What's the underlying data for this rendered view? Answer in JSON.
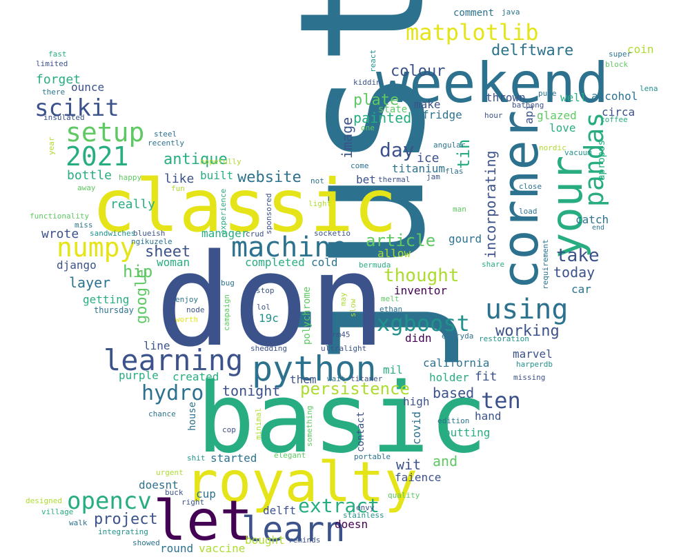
{
  "palette": {
    "purple": "#440154",
    "indigo": "#3b528b",
    "teal": "#2c728e",
    "cyan": "#21918c",
    "green": "#27ad81",
    "lime": "#5ec962",
    "yellowgreen": "#addc30",
    "yellow": "#e4e419"
  },
  "words": [
    {
      "text": "just",
      "color": "teal"
    },
    {
      "text": "don",
      "color": "indigo"
    },
    {
      "text": "basic",
      "color": "green"
    },
    {
      "text": "classic",
      "color": "yellow"
    },
    {
      "text": "weekend",
      "color": "teal"
    },
    {
      "text": "royalty",
      "color": "yellow"
    },
    {
      "text": "let",
      "color": "purple"
    },
    {
      "text": "corner",
      "color": "teal"
    },
    {
      "text": "your",
      "color": "green"
    },
    {
      "text": "learn",
      "color": "indigo"
    },
    {
      "text": "python",
      "color": "teal"
    },
    {
      "text": "learning",
      "color": "indigo"
    },
    {
      "text": "machine",
      "color": "teal"
    },
    {
      "text": "numpy",
      "color": "yellow"
    },
    {
      "text": "setup",
      "color": "lime"
    },
    {
      "text": "2021",
      "color": "green"
    },
    {
      "text": "scikit",
      "color": "indigo"
    },
    {
      "text": "matplotlib",
      "color": "yellow"
    },
    {
      "text": "pandas",
      "color": "green"
    },
    {
      "text": "using",
      "color": "teal"
    },
    {
      "text": "xgboost",
      "color": "cyan"
    },
    {
      "text": "opencv",
      "color": "green"
    },
    {
      "text": "ten",
      "color": "indigo"
    },
    {
      "text": "hydro",
      "color": "teal"
    },
    {
      "text": "extract",
      "color": "green"
    },
    {
      "text": "day",
      "color": "indigo"
    },
    {
      "text": "persistence",
      "color": "yellowgreen"
    },
    {
      "text": "article",
      "color": "lime"
    },
    {
      "text": "thought",
      "color": "yellowgreen"
    },
    {
      "text": "take",
      "color": "indigo"
    },
    {
      "text": "working",
      "color": "indigo"
    },
    {
      "text": "colour",
      "color": "indigo"
    },
    {
      "text": "delftware",
      "color": "teal"
    },
    {
      "text": "plate",
      "color": "lime"
    },
    {
      "text": "website",
      "color": "teal"
    },
    {
      "text": "antique",
      "color": "green"
    },
    {
      "text": "sheet",
      "color": "indigo"
    },
    {
      "text": "project",
      "color": "indigo"
    },
    {
      "text": "hip",
      "color": "lime"
    },
    {
      "text": "tin",
      "color": "green"
    },
    {
      "text": "incorporating",
      "color": "indigo"
    },
    {
      "text": "image",
      "color": "indigo"
    },
    {
      "text": "google",
      "color": "lime"
    },
    {
      "text": "layer",
      "color": "teal"
    },
    {
      "text": "painted",
      "color": "green"
    },
    {
      "text": "based",
      "color": "indigo"
    },
    {
      "text": "tonight",
      "color": "indigo"
    },
    {
      "text": "today",
      "color": "indigo"
    },
    {
      "text": "and",
      "color": "lime"
    },
    {
      "text": "wit",
      "color": "indigo"
    },
    {
      "text": "forget",
      "color": "green"
    },
    {
      "text": "ounce",
      "color": "indigo"
    },
    {
      "text": "bottle",
      "color": "green"
    },
    {
      "text": "like",
      "color": "indigo"
    },
    {
      "text": "really",
      "color": "green"
    },
    {
      "text": "wrote",
      "color": "indigo"
    },
    {
      "text": "manager",
      "color": "green"
    },
    {
      "text": "django",
      "color": "indigo"
    },
    {
      "text": "built",
      "color": "green"
    },
    {
      "text": "woman",
      "color": "green"
    },
    {
      "text": "completed",
      "color": "green"
    },
    {
      "text": "cold",
      "color": "teal"
    },
    {
      "text": "allow",
      "color": "yellowgreen"
    },
    {
      "text": "inventor",
      "color": "purple"
    },
    {
      "text": "getting",
      "color": "green"
    },
    {
      "text": "thursday",
      "color": "teal"
    },
    {
      "text": "line",
      "color": "indigo"
    },
    {
      "text": "purple",
      "color": "green"
    },
    {
      "text": "created",
      "color": "green"
    },
    {
      "text": "them",
      "color": "indigo"
    },
    {
      "text": "mil",
      "color": "green"
    },
    {
      "text": "california",
      "color": "teal"
    },
    {
      "text": "fit",
      "color": "indigo"
    },
    {
      "text": "holder",
      "color": "green"
    },
    {
      "text": "marvel",
      "color": "indigo"
    },
    {
      "text": "didn",
      "color": "purple"
    },
    {
      "text": "19c",
      "color": "cyan"
    },
    {
      "text": "polychrome",
      "color": "lime"
    },
    {
      "text": "high",
      "color": "indigo"
    },
    {
      "text": "contact",
      "color": "indigo"
    },
    {
      "text": "covid",
      "color": "teal"
    },
    {
      "text": "hand",
      "color": "indigo"
    },
    {
      "text": "putting",
      "color": "green"
    },
    {
      "text": "house",
      "color": "teal"
    },
    {
      "text": "started",
      "color": "teal"
    },
    {
      "text": "doesnt",
      "color": "teal"
    },
    {
      "text": "faience",
      "color": "indigo"
    },
    {
      "text": "cup",
      "color": "teal"
    },
    {
      "text": "delft",
      "color": "indigo"
    },
    {
      "text": "doesn",
      "color": "purple"
    },
    {
      "text": "bought",
      "color": "yellowgreen"
    },
    {
      "text": "round",
      "color": "teal"
    },
    {
      "text": "vaccine",
      "color": "yellowgreen"
    },
    {
      "text": "make",
      "color": "indigo"
    },
    {
      "text": "fridge",
      "color": "teal"
    },
    {
      "text": "ice",
      "color": "indigo"
    },
    {
      "text": "titanium",
      "color": "teal"
    },
    {
      "text": "bet",
      "color": "indigo"
    },
    {
      "text": "thrown",
      "color": "indigo"
    },
    {
      "text": "well",
      "color": "green"
    },
    {
      "text": "alcohol",
      "color": "teal"
    },
    {
      "text": "glazed",
      "color": "lime"
    },
    {
      "text": "circa",
      "color": "indigo"
    },
    {
      "text": "love",
      "color": "green"
    },
    {
      "text": "apropos",
      "color": "green"
    },
    {
      "text": "catch",
      "color": "teal"
    },
    {
      "text": "car",
      "color": "teal"
    },
    {
      "text": "gourd",
      "color": "teal"
    },
    {
      "text": "state",
      "color": "lime"
    },
    {
      "text": "api",
      "color": "indigo"
    },
    {
      "text": "comment",
      "color": "teal"
    },
    {
      "text": "java",
      "color": "teal"
    },
    {
      "text": "coin",
      "color": "yellowgreen"
    },
    {
      "text": "super",
      "color": "teal"
    },
    {
      "text": "block",
      "color": "lime"
    },
    {
      "text": "lena",
      "color": "cyan"
    },
    {
      "text": "pure",
      "color": "teal"
    },
    {
      "text": "bathong",
      "color": "indigo"
    },
    {
      "text": "hour",
      "color": "indigo"
    },
    {
      "text": "coffee",
      "color": "green"
    },
    {
      "text": "nordic",
      "color": "yellowgreen"
    },
    {
      "text": "vacuum",
      "color": "cyan"
    },
    {
      "text": "end",
      "color": "teal"
    },
    {
      "text": "kiddin",
      "color": "indigo"
    },
    {
      "text": "react",
      "color": "cyan"
    },
    {
      "text": "one",
      "color": "lime"
    },
    {
      "text": "angular",
      "color": "teal"
    },
    {
      "text": "flas",
      "color": "teal"
    },
    {
      "text": "jam",
      "color": "indigo"
    },
    {
      "text": "come",
      "color": "teal"
    },
    {
      "text": "thermal",
      "color": "indigo"
    },
    {
      "text": "close",
      "color": "teal"
    },
    {
      "text": "load",
      "color": "teal"
    },
    {
      "text": "man",
      "color": "lime"
    },
    {
      "text": "requirement",
      "color": "teal"
    },
    {
      "text": "share",
      "color": "green"
    },
    {
      "text": "restoration",
      "color": "cyan"
    },
    {
      "text": "everyda",
      "color": "teal"
    },
    {
      "text": "harperdb",
      "color": "cyan"
    },
    {
      "text": "missing",
      "color": "indigo"
    },
    {
      "text": "edition",
      "color": "teal"
    },
    {
      "text": "portable",
      "color": "teal"
    },
    {
      "text": "quality",
      "color": "lime"
    },
    {
      "text": "stainless",
      "color": "cyan"
    },
    {
      "text": "reminds",
      "color": "indigo"
    },
    {
      "text": "envy",
      "color": "indigo"
    },
    {
      "text": "wait",
      "color": "teal"
    },
    {
      "text": "titaner",
      "color": "indigo"
    },
    {
      "text": "ultralight",
      "color": "indigo"
    },
    {
      "text": "shedding",
      "color": "indigo"
    },
    {
      "text": "rm45",
      "color": "indigo"
    },
    {
      "text": "ethan",
      "color": "teal"
    },
    {
      "text": "melt",
      "color": "lime"
    },
    {
      "text": "slow",
      "color": "yellowgreen"
    },
    {
      "text": "may",
      "color": "yellowgreen"
    },
    {
      "text": "bermuda",
      "color": "green"
    },
    {
      "text": "stop",
      "color": "indigo"
    },
    {
      "text": "lol",
      "color": "indigo"
    },
    {
      "text": "node",
      "color": "indigo"
    },
    {
      "text": "enjoy",
      "color": "teal"
    },
    {
      "text": "worth",
      "color": "yellow"
    },
    {
      "text": "bug",
      "color": "teal"
    },
    {
      "text": "campaign",
      "color": "lime"
    },
    {
      "text": "crud",
      "color": "indigo"
    },
    {
      "text": "socketio",
      "color": "indigo"
    },
    {
      "text": "buy",
      "color": "teal"
    },
    {
      "text": "light",
      "color": "yellowgreen"
    },
    {
      "text": "not",
      "color": "teal"
    },
    {
      "text": "sponsored",
      "color": "indigo"
    },
    {
      "text": "experience",
      "color": "green"
    },
    {
      "text": "blueish",
      "color": "indigo"
    },
    {
      "text": "ngikuzele",
      "color": "teal"
    },
    {
      "text": "sandwiches",
      "color": "cyan"
    },
    {
      "text": "miss",
      "color": "teal"
    },
    {
      "text": "functionality",
      "color": "lime"
    },
    {
      "text": "away",
      "color": "lime"
    },
    {
      "text": "fun",
      "color": "yellowgreen"
    },
    {
      "text": "happy",
      "color": "lime"
    },
    {
      "text": "hopefully",
      "color": "yellowgreen"
    },
    {
      "text": "recently",
      "color": "teal"
    },
    {
      "text": "steel",
      "color": "teal"
    },
    {
      "text": "year",
      "color": "yellowgreen"
    },
    {
      "text": "insulated",
      "color": "indigo"
    },
    {
      "text": "there",
      "color": "teal"
    },
    {
      "text": "limited",
      "color": "indigo"
    },
    {
      "text": "fast",
      "color": "green"
    },
    {
      "text": "chance",
      "color": "teal"
    },
    {
      "text": "cop",
      "color": "indigo"
    },
    {
      "text": "minimal",
      "color": "yellowgreen"
    },
    {
      "text": "something",
      "color": "lime"
    },
    {
      "text": "elegant",
      "color": "lime"
    },
    {
      "text": "shit",
      "color": "cyan"
    },
    {
      "text": "urgent",
      "color": "yellowgreen"
    },
    {
      "text": "buck",
      "color": "indigo"
    },
    {
      "text": "right",
      "color": "indigo"
    },
    {
      "text": "designed",
      "color": "yellowgreen"
    },
    {
      "text": "village",
      "color": "green"
    },
    {
      "text": "walk",
      "color": "teal"
    },
    {
      "text": "integrating",
      "color": "cyan"
    },
    {
      "text": "showed",
      "color": "teal"
    }
  ]
}
